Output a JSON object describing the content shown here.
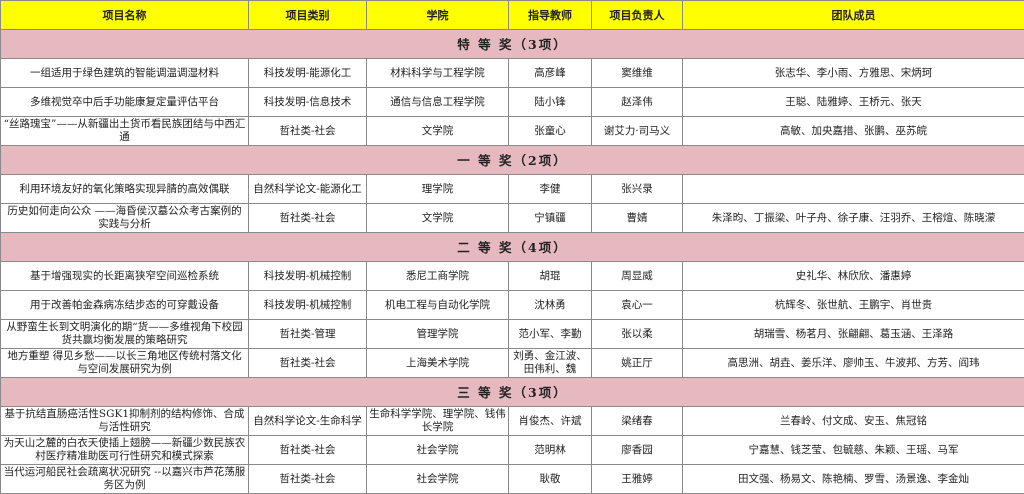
{
  "header": [
    "项目名称",
    "项目类别",
    "学院",
    "指导教师",
    "项目负责人",
    "团队成员"
  ],
  "colors": {
    "header_bg": "#ffff00",
    "section_bg": "#e6b8bf"
  },
  "sections": [
    {
      "title": "特 等 奖（3项）",
      "rows": [
        [
          "一组适用于绿色建筑的智能调温调湿材料",
          "科技发明-能源化工",
          "材料科学与工程学院",
          "高彦峰",
          "窦维维",
          "张志华、李小雨、方雅思、宋炳珂"
        ],
        [
          "多维视觉卒中后手功能康复定量评估平台",
          "科技发明-信息技术",
          "通信与信息工程学院",
          "陆小锋",
          "赵泽伟",
          "王聪、陆雅婷、王桥元、张天"
        ],
        [
          "“丝路瑰宝”——从新疆出土货币看民族团结与中西汇通",
          "哲社类-社会",
          "文学院",
          "张童心",
          "谢艾力·司马义",
          "高敏、加央嘉措、张鹏、巫苏皖"
        ]
      ]
    },
    {
      "title": "一 等 奖（2项）",
      "rows": [
        [
          "利用环境友好的氧化策略实现异腈的高效偶联",
          "自然科学论文-能源化工",
          "理学院",
          "李健",
          "张兴录",
          ""
        ],
        [
          "历史如何走向公众 ——海昏侯汉墓公众考古案例的实践与分析",
          "哲社类-社会",
          "文学院",
          "宁镇疆",
          "曹婧",
          "朱泽昀、丁振梁、叶子舟、徐子康、汪羽乔、王榕煊、陈晓濛"
        ]
      ]
    },
    {
      "title": "二 等 奖（4项）",
      "rows": [
        [
          "基于增强现实的长距离狭窄空间巡检系统",
          "科技发明-机械控制",
          "悉尼工商学院",
          "胡琨",
          "周显威",
          "史礼华、林欣欣、潘惠婷"
        ],
        [
          "用于改善帕金森病冻结步态的可穿戴设备",
          "科技发明-机械控制",
          "机电工程与自动化学院",
          "沈林勇",
          "袁心一",
          "杭辉冬、张世航、王鹏宇、肖世贵"
        ],
        [
          "从野蛮生长到文明演化的期“货——多维视角下校园货共赢均衡发展的策略研究",
          "哲社类-管理",
          "管理学院",
          "范小军、李勤",
          "张以柔",
          "胡瑞雪、杨茗月、张翩翩、葛玉涵、王泽路"
        ],
        [
          "地方重塑 得见乡愁——以长三角地区传统村落文化与空间发展研究为例",
          "哲社类-社会",
          "上海美术学院",
          "刘勇、金江波、田伟利、魏",
          "姚正厅",
          "高思洲、胡垚、姜乐洋、廖帅玉、牛波邦、方芳、阎玮"
        ]
      ]
    },
    {
      "title": "三 等 奖（3项）",
      "rows": [
        [
          "基于抗结直肠癌活性SGK1抑制剂的结构修饰、合成与活性研究",
          "自然科学论文-生命科学",
          "生命科学学院、理学院、钱伟长学院",
          "肖俊杰、许斌",
          "梁绪春",
          "兰春岭、付文成、安玉、焦冠铭"
        ],
        [
          "为天山之麓的白衣天使插上翅膀——新疆少数民族农村医疗精准助医可行性研究和模式探索",
          "哲社类-社会",
          "社会学院",
          "范明林",
          "廖香园",
          "宁嘉慧、钱芝莹、包毓慈、朱颖、王瑶、马军"
        ],
        [
          "当代运河船民社会疏离状况研究 --以嘉兴市芦花荡服务区为例",
          "哲社类-社会",
          "社会学院",
          "耿敬",
          "王雅婷",
          "田文强、杨易文、陈艳楠、罗雪、汤景逸、李金灿"
        ]
      ]
    }
  ]
}
